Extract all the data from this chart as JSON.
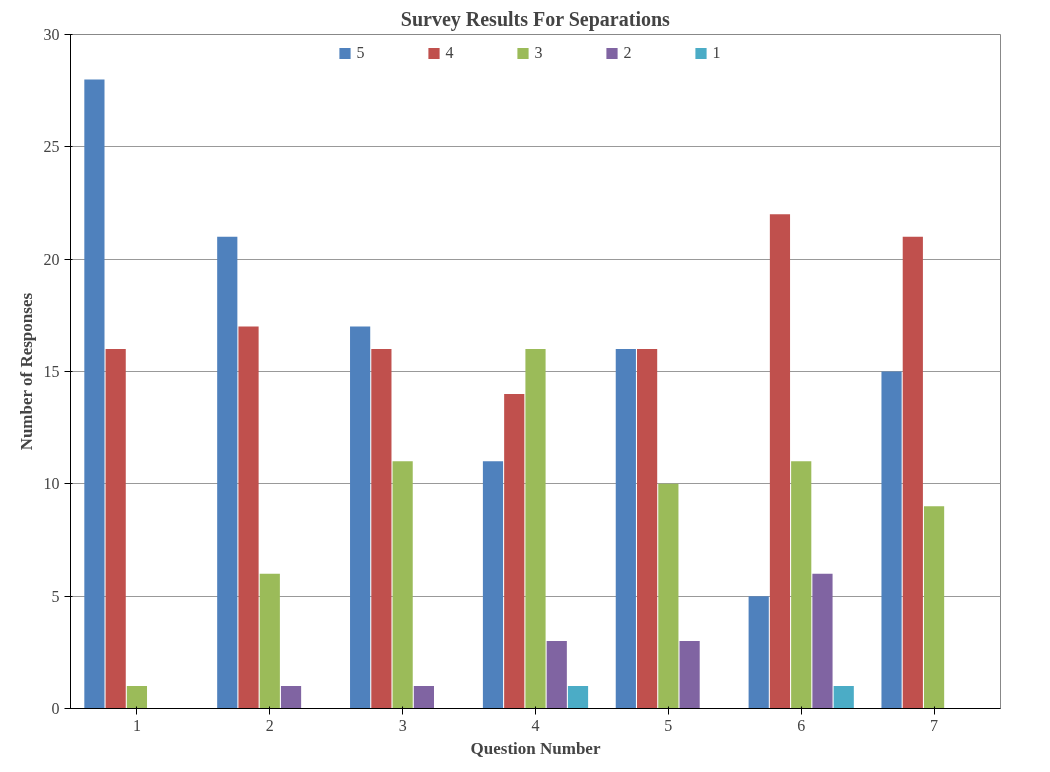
{
  "chart_data": {
    "type": "bar",
    "title": "Survey Results For Separations",
    "xlabel": "Question Number",
    "ylabel": "Number of Responses",
    "categories": [
      "1",
      "2",
      "3",
      "4",
      "5",
      "6",
      "7"
    ],
    "series": [
      {
        "name": "5",
        "color": "#4f81bd",
        "values": [
          28,
          21,
          17,
          11,
          16,
          5,
          15
        ]
      },
      {
        "name": "4",
        "color": "#c0504d",
        "values": [
          16,
          17,
          16,
          14,
          16,
          22,
          21
        ]
      },
      {
        "name": "3",
        "color": "#9bbb59",
        "values": [
          1,
          6,
          11,
          16,
          10,
          11,
          9
        ]
      },
      {
        "name": "2",
        "color": "#8064a2",
        "values": [
          0,
          1,
          1,
          3,
          3,
          6,
          0
        ]
      },
      {
        "name": "1",
        "color": "#4bacc6",
        "values": [
          0,
          0,
          0,
          1,
          0,
          1,
          0
        ]
      }
    ],
    "ylim": [
      0,
      30
    ],
    "yticks": [
      0,
      5,
      10,
      15,
      20,
      25,
      30
    ],
    "grid": "y",
    "legend": "top"
  }
}
